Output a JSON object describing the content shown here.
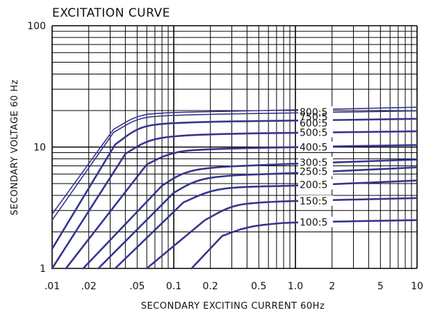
{
  "chart_data": {
    "type": "line",
    "title": "EXCITATION  CURVE",
    "xlabel": "SECONDARY  EXCITING  CURRENT  60Hz",
    "ylabel": "SECONDARY  VOLTAGE  60  Hz",
    "x_scale": "log",
    "y_scale": "log",
    "xlim": [
      0.01,
      10
    ],
    "ylim": [
      1,
      100
    ],
    "grid": true,
    "x_ticks": [
      {
        "value": 0.01,
        "label": ".01"
      },
      {
        "value": 0.02,
        "label": ".02"
      },
      {
        "value": 0.05,
        "label": ".05"
      },
      {
        "value": 0.1,
        "label": "0.1"
      },
      {
        "value": 0.2,
        "label": "0.2"
      },
      {
        "value": 0.5,
        "label": "0.5"
      },
      {
        "value": 1,
        "label": "1.0"
      },
      {
        "value": 2,
        "label": "2"
      },
      {
        "value": 5,
        "label": "5"
      },
      {
        "value": 10,
        "label": "10"
      }
    ],
    "y_ticks": [
      {
        "value": 1,
        "label": "1"
      },
      {
        "value": 10,
        "label": "10"
      },
      {
        "value": 100,
        "label": "100"
      }
    ],
    "line_color": "#35358f",
    "grid_color": "#000000",
    "series": [
      {
        "name": "800:5",
        "label_y": 19.5,
        "points": [
          [
            0.01,
            2.8
          ],
          [
            0.032,
            14
          ],
          [
            0.05,
            18.2
          ],
          [
            0.08,
            19.2
          ],
          [
            0.3,
            19.8
          ],
          [
            1,
            20.2
          ],
          [
            10,
            21.3
          ]
        ]
      },
      {
        "name": "750:5",
        "label_y": 17.8,
        "points": [
          [
            0.01,
            2.5
          ],
          [
            0.032,
            13.2
          ],
          [
            0.05,
            17.2
          ],
          [
            0.08,
            18.2
          ],
          [
            0.3,
            18.8
          ],
          [
            1,
            19.1
          ],
          [
            10,
            19.9
          ]
        ]
      },
      {
        "name": "600:5",
        "label_y": 15.8,
        "points": [
          [
            0.01,
            1.45
          ],
          [
            0.033,
            10.5
          ],
          [
            0.05,
            14.3
          ],
          [
            0.075,
            15.6
          ],
          [
            0.2,
            16.2
          ],
          [
            1,
            16.5
          ],
          [
            10,
            17.1
          ]
        ]
      },
      {
        "name": "500:5",
        "label_y": 13.2,
        "points": [
          [
            0.01,
            1.0
          ],
          [
            0.04,
            8.8
          ],
          [
            0.06,
            11.3
          ],
          [
            0.1,
            12.4
          ],
          [
            0.3,
            12.9
          ],
          [
            1,
            13.1
          ],
          [
            10,
            13.5
          ]
        ]
      },
      {
        "name": "400:5",
        "label_y": 10.0,
        "points": [
          [
            0.013,
            1.0
          ],
          [
            0.06,
            7.2
          ],
          [
            0.09,
            8.8
          ],
          [
            0.14,
            9.5
          ],
          [
            0.4,
            9.8
          ],
          [
            1,
            10.0
          ],
          [
            10,
            10.4
          ]
        ]
      },
      {
        "name": "300:5",
        "label_y": 7.5,
        "points": [
          [
            0.018,
            1.0
          ],
          [
            0.08,
            4.8
          ],
          [
            0.12,
            6.2
          ],
          [
            0.2,
            6.8
          ],
          [
            0.5,
            7.1
          ],
          [
            1,
            7.3
          ],
          [
            10,
            7.9
          ]
        ]
      },
      {
        "name": "250:5",
        "label_y": 6.3,
        "points": [
          [
            0.024,
            1.0
          ],
          [
            0.1,
            4.2
          ],
          [
            0.15,
            5.3
          ],
          [
            0.25,
            5.8
          ],
          [
            0.6,
            6.0
          ],
          [
            1,
            6.1
          ],
          [
            10,
            6.8
          ]
        ]
      },
      {
        "name": "200:5",
        "label_y": 4.9,
        "points": [
          [
            0.033,
            1.0
          ],
          [
            0.12,
            3.5
          ],
          [
            0.2,
            4.4
          ],
          [
            0.35,
            4.7
          ],
          [
            1,
            4.8
          ],
          [
            10,
            5.3
          ]
        ]
      },
      {
        "name": "150:5",
        "label_y": 3.6,
        "points": [
          [
            0.06,
            1.0
          ],
          [
            0.18,
            2.5
          ],
          [
            0.3,
            3.3
          ],
          [
            0.5,
            3.5
          ],
          [
            1,
            3.6
          ],
          [
            10,
            3.8
          ]
        ]
      },
      {
        "name": "100:5",
        "label_y": 2.4,
        "points": [
          [
            0.14,
            1.0
          ],
          [
            0.25,
            1.85
          ],
          [
            0.4,
            2.2
          ],
          [
            0.7,
            2.35
          ],
          [
            1,
            2.4
          ],
          [
            10,
            2.5
          ]
        ]
      }
    ]
  }
}
